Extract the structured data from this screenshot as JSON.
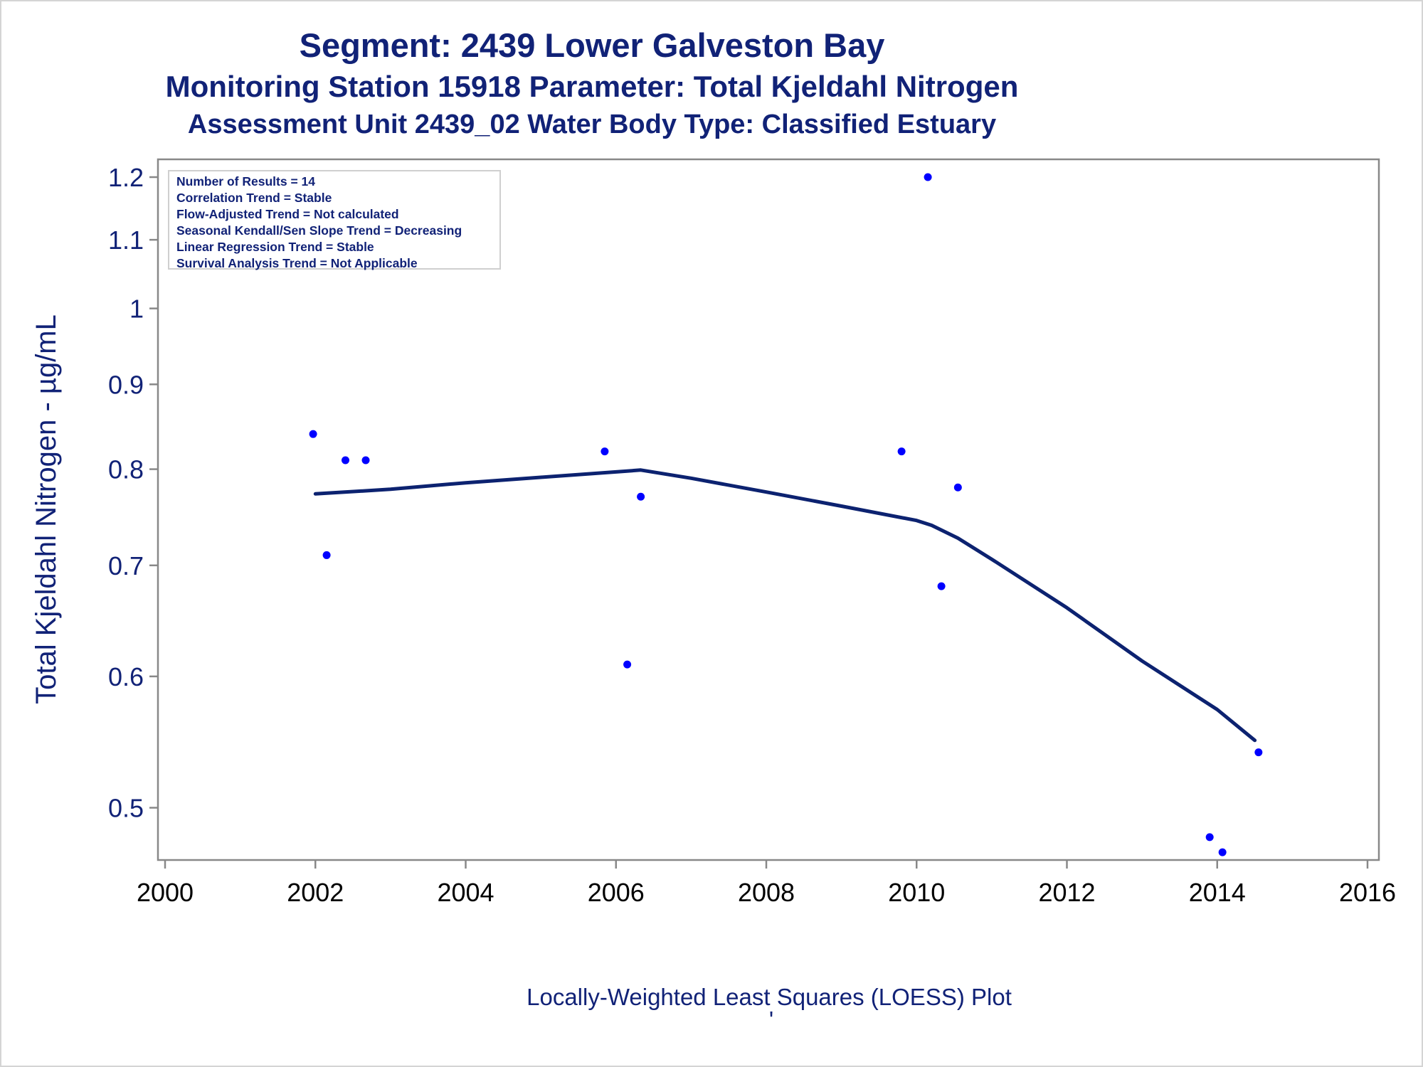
{
  "title": {
    "line1": "Segment: 2439  Lower Galveston Bay",
    "line2": "Monitoring Station 15918 Parameter: Total Kjeldahl Nitrogen",
    "line3": "Assessment Unit 2439_02   Water Body Type: Classified Estuary"
  },
  "stats_box": [
    "Number of Results = 14",
    "Correlation Trend = Stable",
    "Flow-Adjusted Trend = Not calculated",
    "Seasonal Kendall/Sen Slope Trend = Decreasing",
    "Linear Regression Trend = Stable",
    "Survival Analysis Trend = Not Applicable"
  ],
  "footer": {
    "caption": "Locally-Weighted Least Squares (LOESS) Plot",
    "mark": "'"
  },
  "colors": {
    "points": "#0000ff",
    "loess": "#0c2270",
    "text": "#112277",
    "axis": "#888888"
  },
  "chart_data": {
    "type": "scatter",
    "xlabel": "",
    "ylabel": "Total Kjeldahl Nitrogen -  µg/mL",
    "y_scale": "log",
    "xlim": [
      2000,
      2016
    ],
    "ylim": [
      0.465,
      1.23
    ],
    "x_ticks": [
      "2000",
      "2002",
      "2004",
      "2006",
      "2008",
      "2010",
      "2012",
      "2014",
      "2016"
    ],
    "y_ticks": [
      "0.5",
      "0.6",
      "0.7",
      "0.8",
      "0.9",
      "1",
      "1.1",
      "1.2"
    ],
    "series": [
      {
        "kind": "points",
        "points": [
          {
            "x": 2001.97,
            "y": 0.84
          },
          {
            "x": 2002.15,
            "y": 0.71
          },
          {
            "x": 2002.4,
            "y": 0.81
          },
          {
            "x": 2002.67,
            "y": 0.81
          },
          {
            "x": 2005.85,
            "y": 0.82
          },
          {
            "x": 2006.15,
            "y": 0.61
          },
          {
            "x": 2006.33,
            "y": 0.77
          },
          {
            "x": 2009.8,
            "y": 0.82
          },
          {
            "x": 2010.15,
            "y": 1.2
          },
          {
            "x": 2010.33,
            "y": 0.68
          },
          {
            "x": 2010.55,
            "y": 0.78
          },
          {
            "x": 2013.9,
            "y": 0.48
          },
          {
            "x": 2014.07,
            "y": 0.47
          },
          {
            "x": 2014.55,
            "y": 0.54
          }
        ]
      },
      {
        "kind": "loess-line",
        "points": [
          {
            "x": 2002.0,
            "y": 0.773
          },
          {
            "x": 2003.0,
            "y": 0.778
          },
          {
            "x": 2004.0,
            "y": 0.785
          },
          {
            "x": 2005.0,
            "y": 0.791
          },
          {
            "x": 2006.0,
            "y": 0.797
          },
          {
            "x": 2006.33,
            "y": 0.799
          },
          {
            "x": 2007.0,
            "y": 0.79
          },
          {
            "x": 2008.0,
            "y": 0.775
          },
          {
            "x": 2009.0,
            "y": 0.76
          },
          {
            "x": 2010.0,
            "y": 0.745
          },
          {
            "x": 2010.2,
            "y": 0.74
          },
          {
            "x": 2010.55,
            "y": 0.727
          },
          {
            "x": 2011.0,
            "y": 0.706
          },
          {
            "x": 2012.0,
            "y": 0.66
          },
          {
            "x": 2013.0,
            "y": 0.613
          },
          {
            "x": 2014.0,
            "y": 0.573
          },
          {
            "x": 2014.5,
            "y": 0.549
          }
        ]
      }
    ]
  }
}
